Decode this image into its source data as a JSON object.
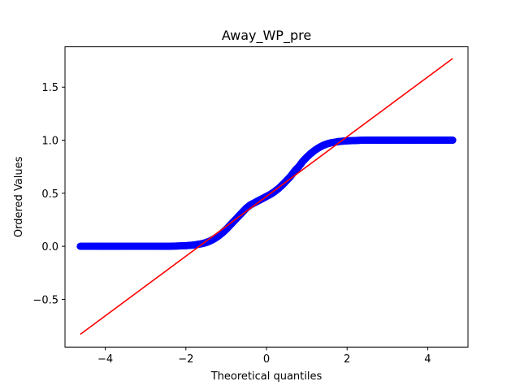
{
  "chart_data": {
    "type": "scatter",
    "title": "Away_WP_pre",
    "xlabel": "Theoretical quantiles",
    "ylabel": "Ordered Values",
    "xlim": [
      -5.0,
      5.0
    ],
    "ylim": [
      -0.95,
      1.88
    ],
    "xticks": [
      -4,
      -2,
      0,
      2,
      4
    ],
    "xtick_labels": [
      "−4",
      "−2",
      "0",
      "2",
      "4"
    ],
    "yticks": [
      -0.5,
      0.0,
      0.5,
      1.0,
      1.5
    ],
    "ytick_labels": [
      "−0.5",
      "0.0",
      "0.5",
      "1.0",
      "1.5"
    ],
    "grid": false,
    "series": [
      {
        "kind": "points",
        "color": "#0000ff",
        "x": [
          -4.62,
          -4.4,
          -4.2,
          -4.0,
          -3.8,
          -3.6,
          -3.4,
          -3.2,
          -3.0,
          -2.8,
          -2.6,
          -2.4,
          -2.2,
          -2.0,
          -1.8,
          -1.6,
          -1.5,
          -1.4,
          -1.3,
          -1.2,
          -1.1,
          -1.0,
          -0.9,
          -0.8,
          -0.7,
          -0.6,
          -0.5,
          -0.4,
          -0.3,
          -0.2,
          -0.1,
          0.0,
          0.1,
          0.2,
          0.3,
          0.4,
          0.5,
          0.6,
          0.7,
          0.8,
          0.9,
          1.0,
          1.1,
          1.2,
          1.3,
          1.4,
          1.5,
          1.6,
          1.8,
          2.0,
          2.2,
          2.4,
          2.6,
          2.8,
          3.0,
          3.2,
          3.4,
          3.6,
          3.8,
          4.0,
          4.2,
          4.4,
          4.62
        ],
        "y": [
          0.0,
          0.0,
          0.0,
          0.0,
          0.0,
          0.0,
          0.0,
          0.0,
          0.0,
          0.0,
          0.0,
          0.0,
          0.003,
          0.006,
          0.012,
          0.025,
          0.035,
          0.05,
          0.07,
          0.095,
          0.125,
          0.16,
          0.2,
          0.24,
          0.28,
          0.32,
          0.36,
          0.39,
          0.41,
          0.43,
          0.45,
          0.47,
          0.49,
          0.515,
          0.545,
          0.58,
          0.62,
          0.66,
          0.71,
          0.75,
          0.8,
          0.84,
          0.875,
          0.905,
          0.93,
          0.95,
          0.965,
          0.975,
          0.988,
          0.994,
          0.997,
          1.0,
          1.0,
          1.0,
          1.0,
          1.0,
          1.0,
          1.0,
          1.0,
          1.0,
          1.0,
          1.0,
          1.0
        ]
      },
      {
        "kind": "line",
        "color": "#ff0000",
        "x": [
          -4.62,
          4.62
        ],
        "y": [
          -0.83,
          1.77
        ]
      }
    ]
  }
}
